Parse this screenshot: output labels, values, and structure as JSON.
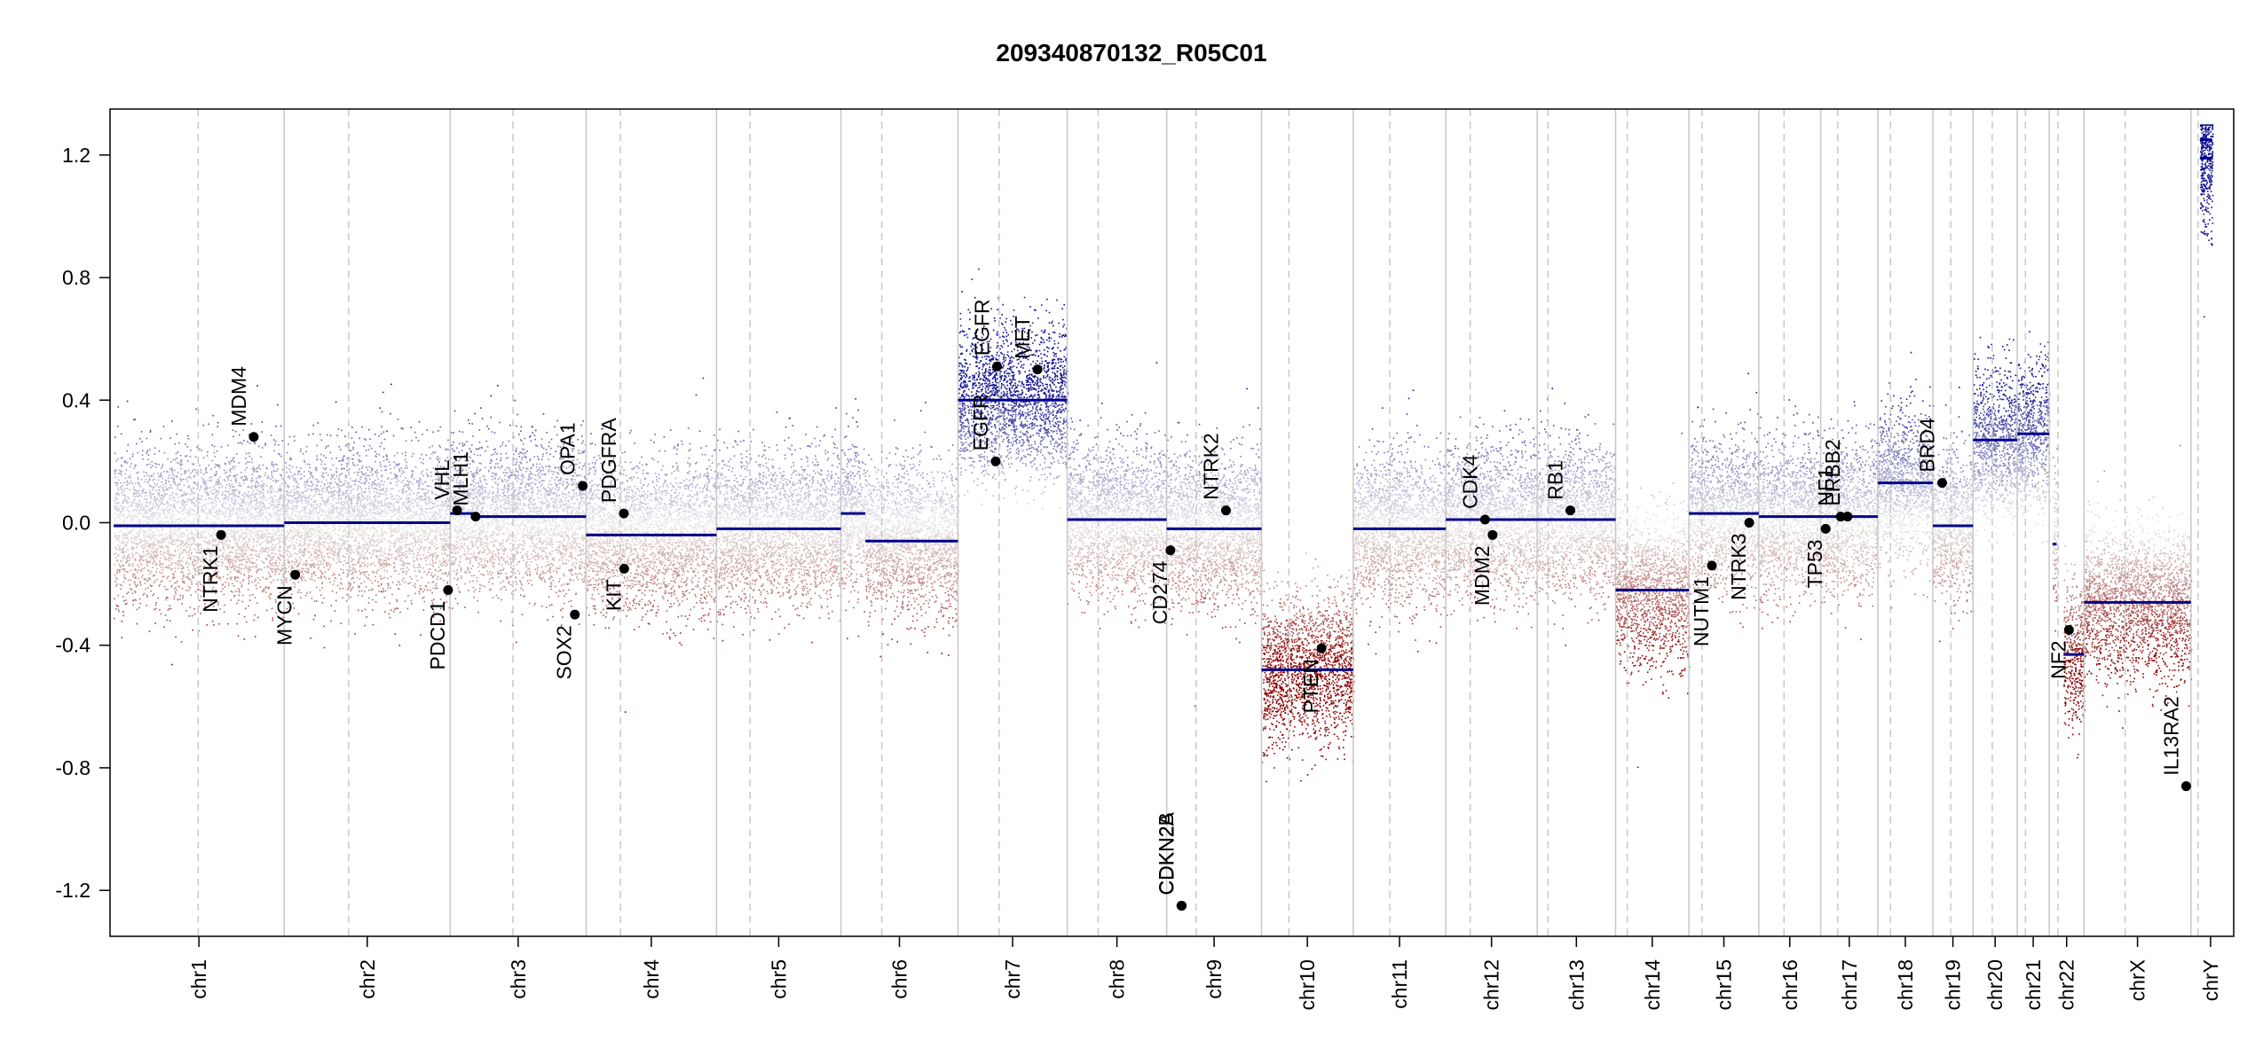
{
  "chart_data": {
    "type": "scatter",
    "title": "209340870132_R05C01",
    "xlabel": "",
    "ylabel": "",
    "ylim": [
      -1.35,
      1.35
    ],
    "yticks": [
      1.2,
      0.8,
      0.4,
      0.0,
      -0.4,
      -0.8,
      -1.2
    ],
    "ytick_labels": [
      "1.2",
      "0.8",
      "0.4",
      "0.0",
      "-0.4",
      "-0.8",
      "-1.2"
    ],
    "grid": false,
    "colors": {
      "gain": "#0f0f8f",
      "loss": "#8b0000",
      "segment": "#00008b",
      "boundary": "#c8c8c8",
      "centromere": "#c8c8c8",
      "gene_point": "#000000"
    },
    "chromosomes": [
      {
        "name": "chr1",
        "span": [
          0,
          248.96
        ],
        "centromere": 123.4
      },
      {
        "name": "chr2",
        "span": [
          248.96,
          491.15
        ],
        "centromere": 342.96
      },
      {
        "name": "chr3",
        "span": [
          491.15,
          689.45
        ],
        "centromere": 582.75
      },
      {
        "name": "chr4",
        "span": [
          689.45,
          879.66
        ],
        "centromere": 739.45
      },
      {
        "name": "chr5",
        "span": [
          879.66,
          1061.2
        ],
        "centromere": 928.46
      },
      {
        "name": "chr6",
        "span": [
          1061.2,
          1232.0
        ],
        "centromere": 1120.8
      },
      {
        "name": "chr7",
        "span": [
          1232.0,
          1391.4
        ],
        "centromere": 1292.1
      },
      {
        "name": "chr8",
        "span": [
          1391.4,
          1536.5
        ],
        "centromere": 1436.6
      },
      {
        "name": "chr9",
        "span": [
          1536.5,
          1674.9
        ],
        "centromere": 1579.5
      },
      {
        "name": "chr10",
        "span": [
          1674.9,
          1808.7
        ],
        "centromere": 1714.9
      },
      {
        "name": "chr11",
        "span": [
          1808.7,
          1943.8
        ],
        "centromere": 1862.1
      },
      {
        "name": "chr12",
        "span": [
          1943.8,
          2077.1
        ],
        "centromere": 1979.4
      },
      {
        "name": "chr13",
        "span": [
          2077.1,
          2191.5
        ],
        "centromere": 2093.0
      },
      {
        "name": "chr14",
        "span": [
          2191.5,
          2298.5
        ],
        "centromere": 2208.5
      },
      {
        "name": "chr15",
        "span": [
          2298.5,
          2400.5
        ],
        "centromere": 2317.5
      },
      {
        "name": "chr16",
        "span": [
          2400.5,
          2490.8
        ],
        "centromere": 2437.3
      },
      {
        "name": "chr17",
        "span": [
          2490.8,
          2574.1
        ],
        "centromere": 2515.6
      },
      {
        "name": "chr18",
        "span": [
          2574.1,
          2654.4
        ],
        "centromere": 2592.6
      },
      {
        "name": "chr19",
        "span": [
          2654.4,
          2713.0
        ],
        "centromere": 2680.6
      },
      {
        "name": "chr20",
        "span": [
          2713.0,
          2777.5
        ],
        "centromere": 2741.1
      },
      {
        "name": "chr21",
        "span": [
          2777.5,
          2824.2
        ],
        "centromere": 2789.5
      },
      {
        "name": "chr22",
        "span": [
          2824.2,
          2875.0
        ],
        "centromere": 2837.1
      },
      {
        "name": "chrX",
        "span": [
          2875.0,
          3031.0
        ],
        "centromere": 2935.0
      },
      {
        "name": "chrY",
        "span": [
          3031.0,
          3088.2
        ],
        "centromere": 3041.4
      }
    ],
    "segments": [
      {
        "chrom": "chr1",
        "start": 0,
        "end": 248.96,
        "value": -0.01
      },
      {
        "chrom": "chr2",
        "start": 248.96,
        "end": 491.15,
        "value": 0.0
      },
      {
        "chrom": "chr3",
        "start": 491.15,
        "end": 530,
        "value": 0.03
      },
      {
        "chrom": "chr3",
        "start": 530,
        "end": 689.45,
        "value": 0.02
      },
      {
        "chrom": "chr4",
        "start": 689.45,
        "end": 879.66,
        "value": -0.04
      },
      {
        "chrom": "chr5",
        "start": 879.66,
        "end": 1061.2,
        "value": -0.02
      },
      {
        "chrom": "chr6",
        "start": 1061.2,
        "end": 1097,
        "value": 0.03
      },
      {
        "chrom": "chr6",
        "start": 1097,
        "end": 1232.0,
        "value": -0.06
      },
      {
        "chrom": "chr7",
        "start": 1232.0,
        "end": 1391.4,
        "value": 0.4
      },
      {
        "chrom": "chr8",
        "start": 1391.4,
        "end": 1536.5,
        "value": 0.01
      },
      {
        "chrom": "chr9",
        "start": 1536.5,
        "end": 1674.9,
        "value": -0.02
      },
      {
        "chrom": "chr10",
        "start": 1674.9,
        "end": 1808.7,
        "value": -0.48
      },
      {
        "chrom": "chr11",
        "start": 1808.7,
        "end": 1943.8,
        "value": -0.02
      },
      {
        "chrom": "chr12",
        "start": 1943.8,
        "end": 2077.1,
        "value": 0.01
      },
      {
        "chrom": "chr13",
        "start": 2077.1,
        "end": 2191.5,
        "value": 0.01
      },
      {
        "chrom": "chr14",
        "start": 2191.5,
        "end": 2298.5,
        "value": -0.22
      },
      {
        "chrom": "chr15",
        "start": 2298.5,
        "end": 2400.5,
        "value": 0.03
      },
      {
        "chrom": "chr16",
        "start": 2400.5,
        "end": 2490.8,
        "value": 0.02
      },
      {
        "chrom": "chr17",
        "start": 2490.8,
        "end": 2574.1,
        "value": 0.02
      },
      {
        "chrom": "chr18",
        "start": 2574.1,
        "end": 2654.4,
        "value": 0.13
      },
      {
        "chrom": "chr19",
        "start": 2654.4,
        "end": 2713.0,
        "value": -0.01
      },
      {
        "chrom": "chr20",
        "start": 2713.0,
        "end": 2777.5,
        "value": 0.27
      },
      {
        "chrom": "chr21",
        "start": 2777.5,
        "end": 2824.2,
        "value": 0.29
      },
      {
        "chrom": "chr22",
        "start": 2829.0,
        "end": 2835.0,
        "value": -0.07
      },
      {
        "chrom": "chr22",
        "start": 2845.0,
        "end": 2875.0,
        "value": -0.43
      },
      {
        "chrom": "chrX",
        "start": 2875.0,
        "end": 3031.0,
        "value": -0.26
      },
      {
        "chrom": "chrY",
        "start": 3044.0,
        "end": 3062.0,
        "value": 1.25
      },
      {
        "chrom": "chrY",
        "start": 3044.0,
        "end": 3062.0,
        "value": 1.19
      }
    ],
    "genes": [
      {
        "name": "NTRK1",
        "x": 156.8,
        "value": -0.04,
        "label_side": "below"
      },
      {
        "name": "MDM4",
        "x": 204.5,
        "value": 0.28,
        "label_side": "above"
      },
      {
        "name": "MYCN",
        "x": 265.0,
        "value": -0.17,
        "label_side": "below"
      },
      {
        "name": "VHL",
        "x": 501.2,
        "value": 0.04,
        "label_side": "above"
      },
      {
        "name": "MLH1",
        "x": 528.2,
        "value": 0.02,
        "label_side": "above"
      },
      {
        "name": "PDCD1",
        "x": 488.0,
        "value": -0.22,
        "label_side": "below"
      },
      {
        "name": "SOX2",
        "x": 673.0,
        "value": -0.3,
        "label_side": "below"
      },
      {
        "name": "OPA1",
        "x": 684.5,
        "value": 0.12,
        "label_side": "above"
      },
      {
        "name": "PDGFRA",
        "x": 744.5,
        "value": 0.03,
        "label_side": "above"
      },
      {
        "name": "KIT",
        "x": 745.0,
        "value": -0.15,
        "label_side": "below"
      },
      {
        "name": "EGFR",
        "x": 1287.0,
        "value": 0.2,
        "label_side": "above"
      },
      {
        "name": "EGFR",
        "x": 1289.0,
        "value": 0.51,
        "label_side": "above"
      },
      {
        "name": "MET",
        "x": 1348.0,
        "value": 0.5,
        "label_side": "above"
      },
      {
        "name": "CD274",
        "x": 1542.0,
        "value": -0.09,
        "label_side": "below"
      },
      {
        "name": "CDKN2B",
        "x": 1558.0,
        "value": -1.25,
        "label_side": "above"
      },
      {
        "name": "CDKN2A",
        "x": 1558.5,
        "value": -1.25,
        "label_side": "above"
      },
      {
        "name": "NTRK2",
        "x": 1623.0,
        "value": 0.04,
        "label_side": "above"
      },
      {
        "name": "PTEN",
        "x": 1762.5,
        "value": -0.41,
        "label_side": "below"
      },
      {
        "name": "CDK4",
        "x": 2001.0,
        "value": 0.01,
        "label_side": "above"
      },
      {
        "name": "MDM2",
        "x": 2012.0,
        "value": -0.04,
        "label_side": "below"
      },
      {
        "name": "RB1",
        "x": 2125.5,
        "value": 0.04,
        "label_side": "above"
      },
      {
        "name": "NUTM1",
        "x": 2332.0,
        "value": -0.14,
        "label_side": "below"
      },
      {
        "name": "NTRK3",
        "x": 2386.5,
        "value": 0.0,
        "label_side": "below"
      },
      {
        "name": "TP53",
        "x": 2498.0,
        "value": -0.02,
        "label_side": "below"
      },
      {
        "name": "NF1",
        "x": 2520.0,
        "value": 0.02,
        "label_side": "above"
      },
      {
        "name": "ERBB2",
        "x": 2530.0,
        "value": 0.02,
        "label_side": "above"
      },
      {
        "name": "BRD4",
        "x": 2668.0,
        "value": 0.13,
        "label_side": "above"
      },
      {
        "name": "NF2",
        "x": 2853.0,
        "value": -0.35,
        "label_side": "below"
      },
      {
        "name": "IL13RA2",
        "x": 3024.0,
        "value": -0.86,
        "label_side": "above"
      }
    ]
  }
}
